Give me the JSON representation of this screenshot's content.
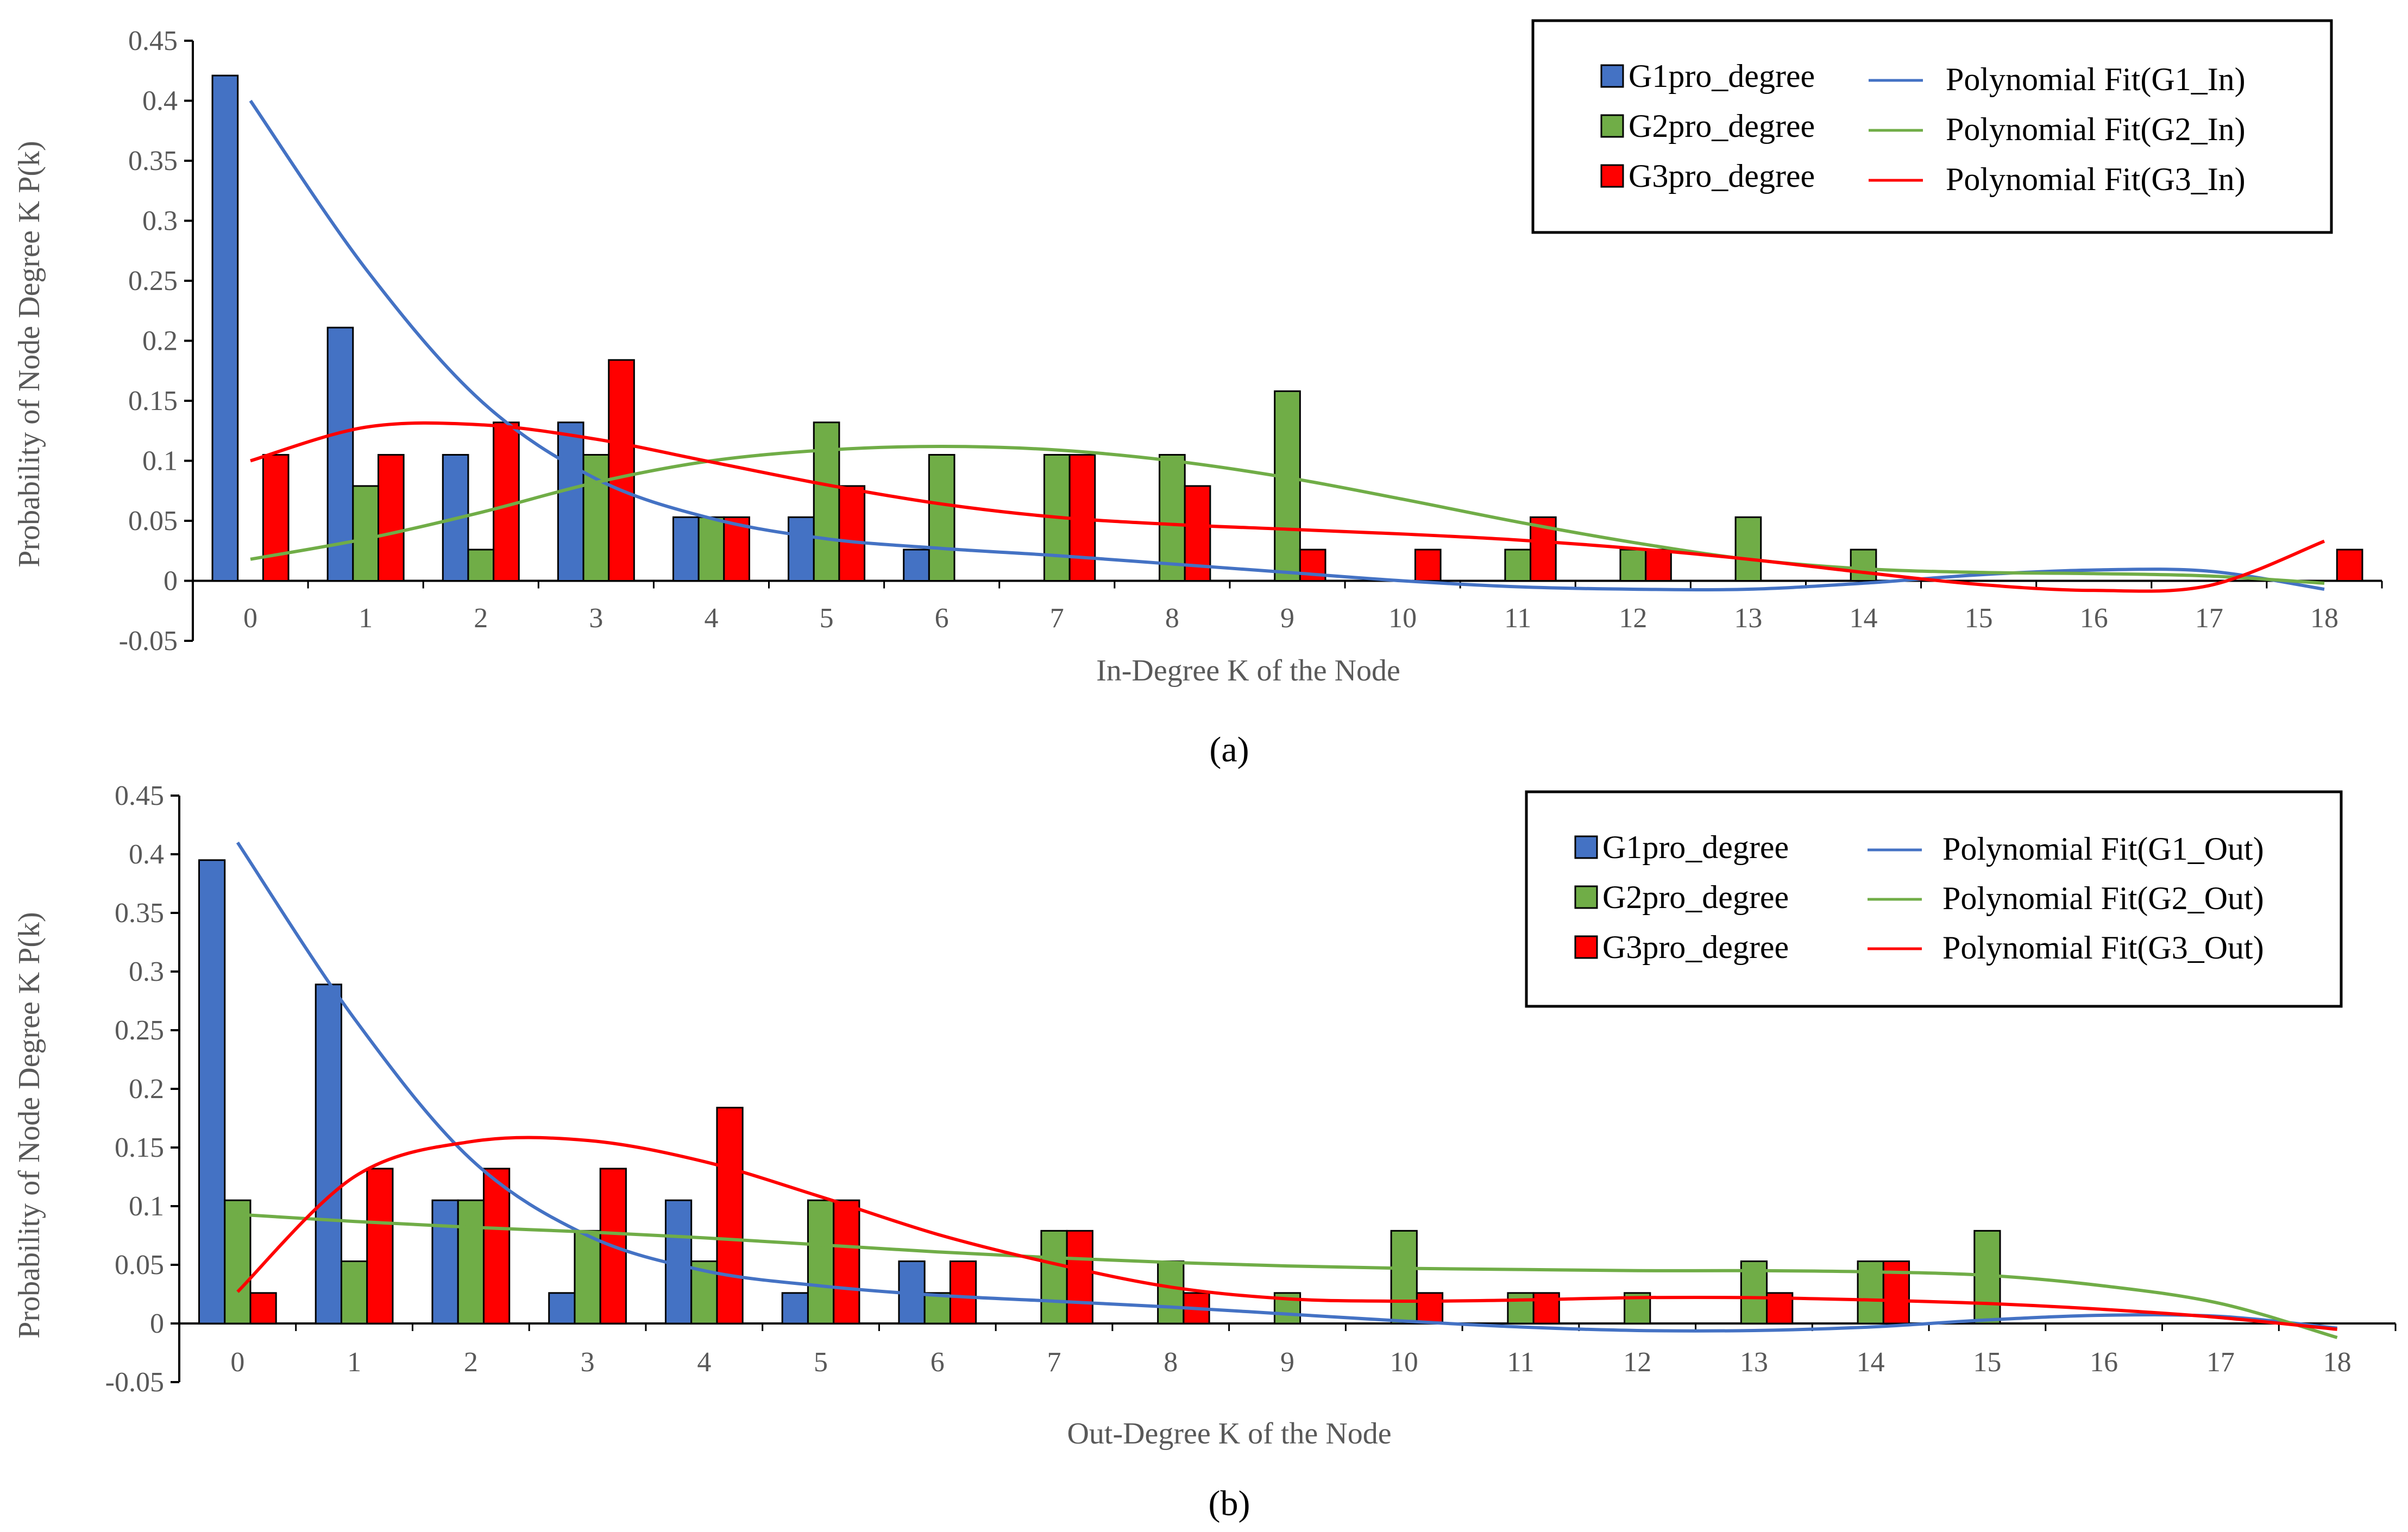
{
  "colors": {
    "g1": "#4472C4",
    "g2": "#70AD47",
    "g3": "#FF0000",
    "axis": "#000000",
    "text": "#595959"
  },
  "chart_data": [
    {
      "type": "bar",
      "panel_label": "(a)",
      "xlabel": "In-Degree K of the Node",
      "ylabel": "Probability  of Node Degree K P(k)",
      "categories": [
        "0",
        "1",
        "2",
        "3",
        "4",
        "5",
        "6",
        "7",
        "8",
        "9",
        "10",
        "11",
        "12",
        "13",
        "14",
        "15",
        "16",
        "17",
        "18"
      ],
      "ylim": [
        -0.05,
        0.45
      ],
      "yticks": [
        "-0.05",
        "0",
        "0.05",
        "0.1",
        "0.15",
        "0.2",
        "0.25",
        "0.3",
        "0.35",
        "0.4",
        "0.45"
      ],
      "legend_position": "top-right",
      "series": [
        {
          "name": "G1pro_degree",
          "color": "#4472C4",
          "values": [
            0.421,
            0.211,
            0.105,
            0.132,
            0.053,
            0.053,
            0.026,
            0,
            0,
            0,
            0,
            0,
            0,
            0,
            0,
            0,
            0,
            0,
            0
          ]
        },
        {
          "name": "G2pro_degree",
          "color": "#70AD47",
          "values": [
            0,
            0.079,
            0.026,
            0.105,
            0.053,
            0.132,
            0.105,
            0.105,
            0.105,
            0.158,
            0,
            0.026,
            0.026,
            0.053,
            0.026,
            0,
            0,
            0,
            0
          ]
        },
        {
          "name": "G3pro_degree",
          "color": "#FF0000",
          "values": [
            0.105,
            0.105,
            0.132,
            0.184,
            0.053,
            0.079,
            0,
            0.105,
            0.079,
            0.026,
            0.026,
            0.053,
            0.026,
            0,
            0,
            0,
            0,
            0,
            0.026
          ]
        }
      ],
      "fits": [
        {
          "name": "Polynomial  Fit(G1_In)",
          "color": "#4472C4",
          "x": [
            0,
            1,
            2,
            3,
            4,
            5,
            6,
            7,
            8,
            9,
            10,
            11,
            12,
            13,
            14,
            15,
            16,
            17,
            18
          ],
          "y": [
            0.4,
            0.26,
            0.15,
            0.085,
            0.052,
            0.035,
            0.027,
            0.021,
            0.014,
            0.007,
            0.0,
            -0.005,
            -0.007,
            -0.007,
            -0.002,
            0.005,
            0.009,
            0.008,
            -0.007
          ]
        },
        {
          "name": "Polynomial  Fit(G2_In)",
          "color": "#70AD47",
          "x": [
            0,
            1,
            2,
            3,
            4,
            5,
            6,
            7,
            8,
            9,
            10,
            11,
            12,
            13,
            14,
            15,
            16,
            17,
            18
          ],
          "y": [
            0.018,
            0.035,
            0.057,
            0.082,
            0.1,
            0.109,
            0.112,
            0.109,
            0.1,
            0.086,
            0.068,
            0.049,
            0.032,
            0.018,
            0.01,
            0.007,
            0.006,
            0.004,
            -0.002
          ]
        },
        {
          "name": "Polynomial  Fit(G3_In)",
          "color": "#FF0000",
          "x": [
            0,
            1,
            2,
            3,
            4,
            5,
            6,
            7,
            8,
            9,
            10,
            11,
            12,
            13,
            14,
            15,
            16,
            17,
            18
          ],
          "y": [
            0.1,
            0.128,
            0.13,
            0.118,
            0.099,
            0.08,
            0.064,
            0.053,
            0.047,
            0.043,
            0.039,
            0.034,
            0.027,
            0.018,
            0.007,
            -0.003,
            -0.008,
            -0.004,
            0.033
          ]
        }
      ]
    },
    {
      "type": "bar",
      "panel_label": "(b)",
      "xlabel": "Out-Degree K of the Node",
      "ylabel": "Probability  of Node Degree K P(k)",
      "categories": [
        "0",
        "1",
        "2",
        "3",
        "4",
        "5",
        "6",
        "7",
        "8",
        "9",
        "10",
        "11",
        "12",
        "13",
        "14",
        "15",
        "16",
        "17",
        "18"
      ],
      "ylim": [
        -0.05,
        0.45
      ],
      "yticks": [
        "-0.05",
        "0",
        "0.05",
        "0.1",
        "0.15",
        "0.2",
        "0.25",
        "0.3",
        "0.35",
        "0.4",
        "0.45"
      ],
      "legend_position": "top-right",
      "series": [
        {
          "name": "G1pro_degree",
          "color": "#4472C4",
          "values": [
            0.395,
            0.289,
            0.105,
            0.026,
            0.105,
            0.026,
            0.053,
            0,
            0,
            0,
            0,
            0,
            0,
            0,
            0,
            0,
            0,
            0,
            0
          ]
        },
        {
          "name": "G2pro_degree",
          "color": "#70AD47",
          "values": [
            0.105,
            0.053,
            0.105,
            0.079,
            0.053,
            0.105,
            0.026,
            0.079,
            0.053,
            0.026,
            0.079,
            0.026,
            0.026,
            0.053,
            0.053,
            0.079,
            0,
            0,
            0
          ]
        },
        {
          "name": "G3pro_degree",
          "color": "#FF0000",
          "values": [
            0.026,
            0.132,
            0.132,
            0.132,
            0.184,
            0.105,
            0.053,
            0.079,
            0.026,
            0,
            0.026,
            0.026,
            0,
            0.026,
            0.053,
            0,
            0,
            0,
            0
          ]
        }
      ],
      "fits": [
        {
          "name": "Polynomial  Fit(G1_Out)",
          "color": "#4472C4",
          "x": [
            0,
            1,
            2,
            3,
            4,
            5,
            6,
            7,
            8,
            9,
            10,
            11,
            12,
            13,
            14,
            15,
            16,
            17,
            18
          ],
          "y": [
            0.41,
            0.26,
            0.14,
            0.075,
            0.045,
            0.032,
            0.024,
            0.019,
            0.014,
            0.008,
            0.002,
            -0.003,
            -0.006,
            -0.006,
            -0.003,
            0.003,
            0.007,
            0.006,
            -0.004
          ]
        },
        {
          "name": "Polynomial  Fit(G2_Out)",
          "color": "#70AD47",
          "x": [
            0,
            1,
            2,
            3,
            4,
            5,
            6,
            7,
            8,
            9,
            10,
            11,
            12,
            13,
            14,
            15,
            16,
            17,
            18
          ],
          "y": [
            0.093,
            0.087,
            0.082,
            0.078,
            0.073,
            0.067,
            0.061,
            0.056,
            0.052,
            0.049,
            0.047,
            0.046,
            0.045,
            0.045,
            0.044,
            0.041,
            0.032,
            0.017,
            -0.012
          ]
        },
        {
          "name": "Polynomial  Fit(G3_Out)",
          "color": "#FF0000",
          "x": [
            0,
            1,
            2,
            3,
            4,
            5,
            6,
            7,
            8,
            9,
            10,
            11,
            12,
            13,
            14,
            15,
            16,
            17,
            18
          ],
          "y": [
            0.027,
            0.125,
            0.155,
            0.156,
            0.138,
            0.108,
            0.076,
            0.051,
            0.031,
            0.021,
            0.019,
            0.02,
            0.022,
            0.022,
            0.02,
            0.017,
            0.012,
            0.005,
            -0.005
          ]
        }
      ]
    }
  ]
}
